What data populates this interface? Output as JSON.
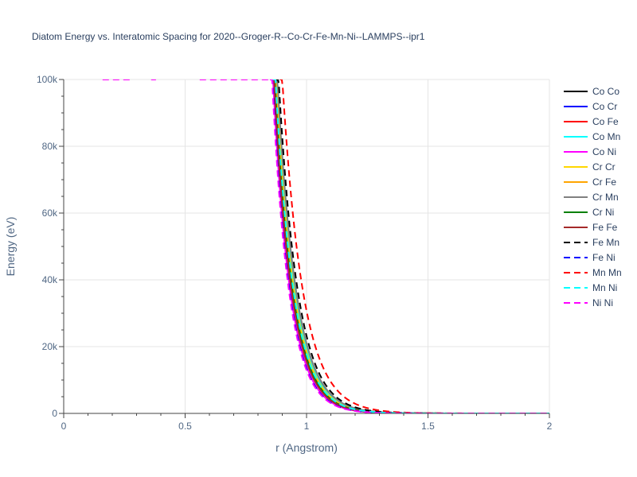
{
  "chart_data": {
    "type": "line",
    "title": "Diatom Energy vs. Interatomic Spacing for 2020--Groger-R--Co-Cr-Fe-Mn-Ni--LAMMPS--ipr1",
    "xlabel": "r (Angstrom)",
    "ylabel": "Energy (eV)",
    "xlim": [
      0,
      2
    ],
    "ylim": [
      0,
      100000
    ],
    "x_ticks": [
      0,
      0.5,
      1,
      1.5,
      2
    ],
    "x_tick_labels": [
      "0",
      "0.5",
      "1",
      "1.5",
      "2"
    ],
    "y_ticks": [
      0,
      20000,
      40000,
      60000,
      80000,
      100000
    ],
    "y_tick_labels": [
      "0",
      "20k",
      "40k",
      "60k",
      "80k",
      "100k"
    ],
    "grid": true,
    "legend_position": "right",
    "series": [
      {
        "name": "Co Co",
        "color": "#000000",
        "dash": "solid",
        "r0": 0.875,
        "decay": 13.2,
        "x_start": 0.87
      },
      {
        "name": "Co Cr",
        "color": "#0000ff",
        "dash": "solid",
        "r0": 0.868,
        "decay": 13.8,
        "x_start": 0.86
      },
      {
        "name": "Co Fe",
        "color": "#ff0000",
        "dash": "solid",
        "r0": 0.872,
        "decay": 13.5,
        "x_start": 0.86
      },
      {
        "name": "Co Mn",
        "color": "#00ffff",
        "dash": "solid",
        "r0": 0.876,
        "decay": 13.3,
        "x_start": 0.87
      },
      {
        "name": "Co Ni",
        "color": "#ff00ff",
        "dash": "solid",
        "r0": 0.862,
        "decay": 14.2,
        "x_start": 0.85
      },
      {
        "name": "Cr Cr",
        "color": "#ffd700",
        "dash": "solid",
        "r0": 0.874,
        "decay": 13.4,
        "x_start": 0.86
      },
      {
        "name": "Cr Fe",
        "color": "#ffa500",
        "dash": "solid",
        "r0": 0.871,
        "decay": 13.6,
        "x_start": 0.86
      },
      {
        "name": "Cr Mn",
        "color": "#808080",
        "dash": "solid",
        "r0": 0.88,
        "decay": 13.0,
        "x_start": 0.87
      },
      {
        "name": "Cr Ni",
        "color": "#008000",
        "dash": "solid",
        "r0": 0.869,
        "decay": 13.7,
        "x_start": 0.86
      },
      {
        "name": "Fe Fe",
        "color": "#a52a2a",
        "dash": "solid",
        "r0": 0.866,
        "decay": 13.9,
        "x_start": 0.85
      },
      {
        "name": "Fe Mn",
        "color": "#000000",
        "dash": "dash",
        "r0": 0.885,
        "decay": 12.7,
        "x_start": 0.87
      },
      {
        "name": "Fe Ni",
        "color": "#0000ff",
        "dash": "dash",
        "r0": 0.86,
        "decay": 14.3,
        "x_start": 0.85
      },
      {
        "name": "Mn Mn",
        "color": "#ff0000",
        "dash": "dash",
        "r0": 0.9,
        "decay": 11.8,
        "x_start": 0.89
      },
      {
        "name": "Mn Ni",
        "color": "#00ffff",
        "dash": "dash",
        "r0": 0.872,
        "decay": 13.5,
        "x_start": 0.86
      },
      {
        "name": "Ni Ni",
        "color": "#ff00ff",
        "dash": "dash",
        "r0": 0.858,
        "decay": 14.4,
        "x_start": 0.85
      }
    ],
    "plateau_segments": [
      {
        "color": "#ff00ff",
        "dash": "dash",
        "x": [
          0.16,
          0.28
        ],
        "y": 100000
      },
      {
        "color": "#ff00ff",
        "dash": "dash",
        "x": [
          0.36,
          0.38
        ],
        "y": 100000
      },
      {
        "color": "#ff00ff",
        "dash": "dash",
        "x": [
          0.56,
          0.86
        ],
        "y": 100000
      }
    ]
  }
}
